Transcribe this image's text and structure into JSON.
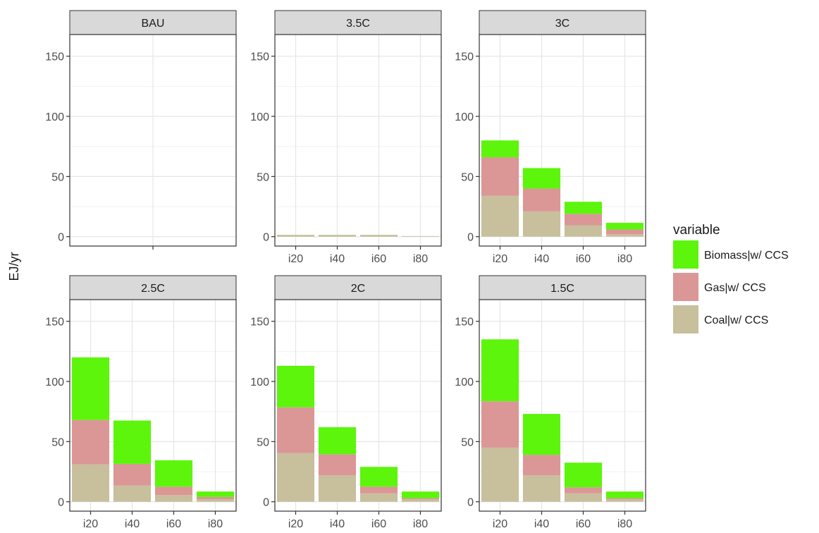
{
  "chart_data": {
    "type": "bar",
    "stacked": true,
    "ylabel": "EJ/yr",
    "ylim": [
      0,
      160
    ],
    "yticks": [
      0,
      50,
      100,
      150
    ],
    "grid": true,
    "legend_title": "variable",
    "legend_position": "right",
    "series_names": [
      "Biomass|w/ CCS",
      "Gas|w/ CCS",
      "Coal|w/ CCS"
    ],
    "colors": {
      "Biomass|w/ CCS": "#5cf50b",
      "Gas|w/ CCS": "#db9696",
      "Coal|w/ CCS": "#c8bf9c"
    },
    "panels": [
      {
        "title": "BAU",
        "categories": [],
        "series": [
          {
            "name": "Coal|w/ CCS",
            "values": []
          },
          {
            "name": "Gas|w/ CCS",
            "values": []
          },
          {
            "name": "Biomass|w/ CCS",
            "values": []
          }
        ]
      },
      {
        "title": "3.5C",
        "categories": [
          "i20",
          "i40",
          "i60",
          "i80"
        ],
        "series": [
          {
            "name": "Coal|w/ CCS",
            "values": [
              1.5,
              1.5,
              1.5,
              0.5
            ]
          },
          {
            "name": "Gas|w/ CCS",
            "values": [
              0,
              0,
              0,
              0
            ]
          },
          {
            "name": "Biomass|w/ CCS",
            "values": [
              0,
              0,
              0,
              0
            ]
          }
        ]
      },
      {
        "title": "3C",
        "categories": [
          "i20",
          "i40",
          "i60",
          "i80"
        ],
        "series": [
          {
            "name": "Coal|w/ CCS",
            "values": [
              34,
              21,
              9.5,
              2
            ]
          },
          {
            "name": "Gas|w/ CCS",
            "values": [
              32,
              19,
              9.5,
              4
            ]
          },
          {
            "name": "Biomass|w/ CCS",
            "values": [
              14,
              17,
              10,
              5.5
            ]
          }
        ]
      },
      {
        "title": "2.5C",
        "categories": [
          "i20",
          "i40",
          "i60",
          "i80"
        ],
        "series": [
          {
            "name": "Coal|w/ CCS",
            "values": [
              31,
              13.5,
              5.5,
              2
            ]
          },
          {
            "name": "Gas|w/ CCS",
            "values": [
              37,
              18,
              7,
              2
            ]
          },
          {
            "name": "Biomass|w/ CCS",
            "values": [
              52,
              36,
              22,
              4.5
            ]
          }
        ]
      },
      {
        "title": "2C",
        "categories": [
          "i20",
          "i40",
          "i60",
          "i80"
        ],
        "series": [
          {
            "name": "Coal|w/ CCS",
            "values": [
              40.5,
              22,
              7,
              2
            ]
          },
          {
            "name": "Gas|w/ CCS",
            "values": [
              38,
              17.5,
              5.5,
              1
            ]
          },
          {
            "name": "Biomass|w/ CCS",
            "values": [
              34.5,
              22.5,
              16.5,
              5.5
            ]
          }
        ]
      },
      {
        "title": "1.5C",
        "categories": [
          "i20",
          "i40",
          "i60",
          "i80"
        ],
        "series": [
          {
            "name": "Coal|w/ CCS",
            "values": [
              45,
              22,
              7,
              2
            ]
          },
          {
            "name": "Gas|w/ CCS",
            "values": [
              38.5,
              17,
              5,
              1
            ]
          },
          {
            "name": "Biomass|w/ CCS",
            "values": [
              51.5,
              34,
              20.5,
              5.5
            ]
          }
        ]
      }
    ]
  }
}
